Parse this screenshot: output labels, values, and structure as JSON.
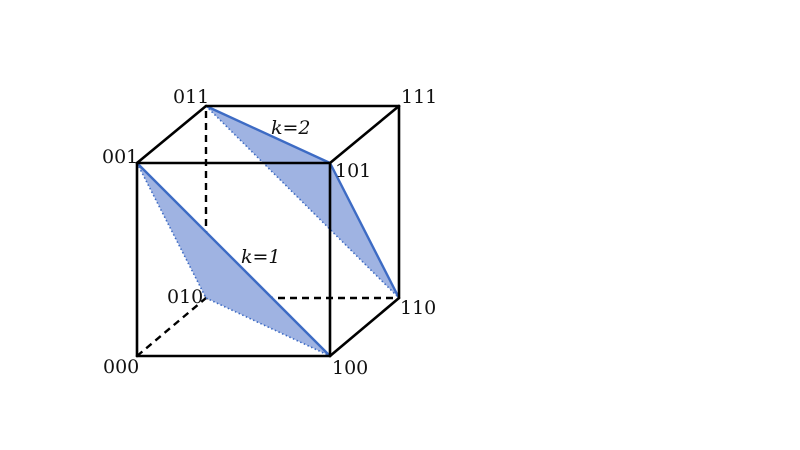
{
  "diagram": {
    "vertices": {
      "v000": "000",
      "v001": "001",
      "v010": "010",
      "v011": "011",
      "v100": "100",
      "v101": "101",
      "v110": "110",
      "v111": "111"
    },
    "slices": {
      "k1": "k=1",
      "k2": "k=2"
    },
    "colors": {
      "edge": "#000000",
      "slice_fill": "#9fb3e2",
      "slice_edge": "#3d6bc4"
    }
  }
}
